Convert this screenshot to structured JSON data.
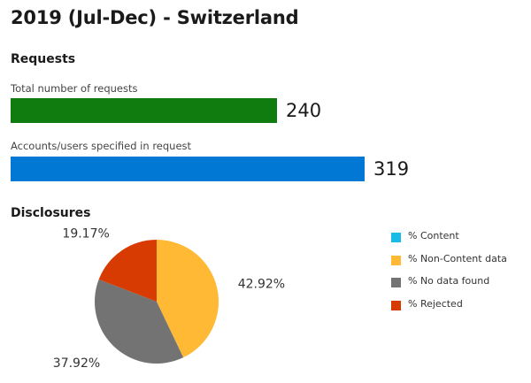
{
  "title": "2019 (Jul-Dec) - Switzerland",
  "requests": {
    "heading": "Requests",
    "metrics": [
      {
        "label": "Total number of requests",
        "value": 240,
        "value_text": "240",
        "color": "#107c10"
      },
      {
        "label": "Accounts/users specified in request",
        "value": 319,
        "value_text": "319",
        "color": "#0078d4"
      }
    ]
  },
  "disclosures": {
    "heading": "Disclosures"
  },
  "chart_data": {
    "type": "pie",
    "slices": [
      {
        "label": "% Content",
        "value": 0,
        "value_text": "",
        "color": "#19bce6"
      },
      {
        "label": "% Non-Content data",
        "value": 42.92,
        "value_text": "42.92%",
        "color": "#ffb934"
      },
      {
        "label": "% No data found",
        "value": 37.92,
        "value_text": "37.92%",
        "color": "#737373"
      },
      {
        "label": "% Rejected",
        "value": 19.17,
        "value_text": "19.17%",
        "color": "#d83b01"
      }
    ],
    "legend_position": "right"
  }
}
